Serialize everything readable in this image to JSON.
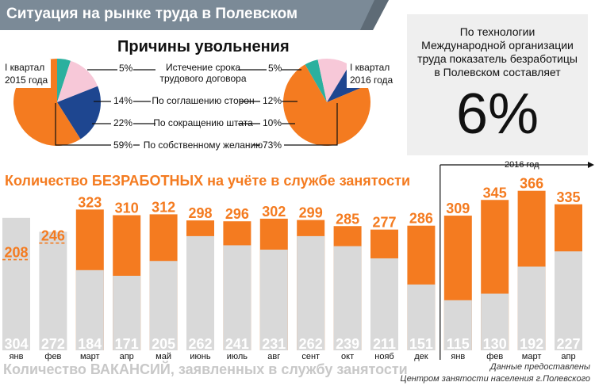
{
  "header": {
    "title": "Ситуация на рынке труда в Полевском"
  },
  "pies": {
    "title": "Причины увольнения",
    "left_label": [
      "I квартал",
      "2015 года"
    ],
    "right_label": [
      "I квартал",
      "2016 года"
    ],
    "reasons": [
      {
        "label": [
          "Истечение срока",
          "трудового договора"
        ],
        "q2015": "5%",
        "q2016": "5%"
      },
      {
        "label": [
          "По соглашению сторон"
        ],
        "q2015": "14%",
        "q2016": "12%"
      },
      {
        "label": [
          "По сокращению штата"
        ],
        "q2015": "22%",
        "q2016": "10%"
      },
      {
        "label": [
          "По собственному желанию"
        ],
        "q2015": "59%",
        "q2016": "73%"
      }
    ],
    "colors": [
      "#2bb09e",
      "#f7c8d8",
      "#1e4690",
      "#f47b20"
    ]
  },
  "info": {
    "lines": [
      "По технологии",
      "Международной организации",
      "труда показатель безработицы",
      "в Полевском составляет"
    ],
    "value": "6%"
  },
  "chart_data": {
    "type": "bar",
    "title": "Количество БЕЗРАБОТНЫХ на учёте в службе занятости",
    "secondary_title": "Количество ВАКАНСИЙ, заявленных в службу занятости",
    "categories": [
      "янв",
      "фев",
      "март",
      "апр",
      "май",
      "июнь",
      "июль",
      "авг",
      "сент",
      "окт",
      "нояб",
      "дек",
      "янв",
      "фев",
      "март",
      "апр"
    ],
    "period_label": "2016 год",
    "series": [
      {
        "name": "Количество БЕЗРАБОТНЫХ на учёте в службе занятости",
        "values": [
          208,
          246,
          323,
          310,
          312,
          298,
          296,
          302,
          299,
          285,
          277,
          286,
          309,
          345,
          366,
          335
        ],
        "color": "#f47b20"
      },
      {
        "name": "Количество ВАКАНСИЙ, заявленных в службу занятости",
        "values": [
          304,
          272,
          184,
          171,
          205,
          262,
          241,
          231,
          262,
          239,
          211,
          151,
          115,
          130,
          192,
          227
        ],
        "color": "#d9d9d9"
      }
    ],
    "ylim": [
      0,
      400
    ]
  },
  "credits": [
    "Данные предоставлены",
    "Центром занятости населения г.Полевского"
  ]
}
